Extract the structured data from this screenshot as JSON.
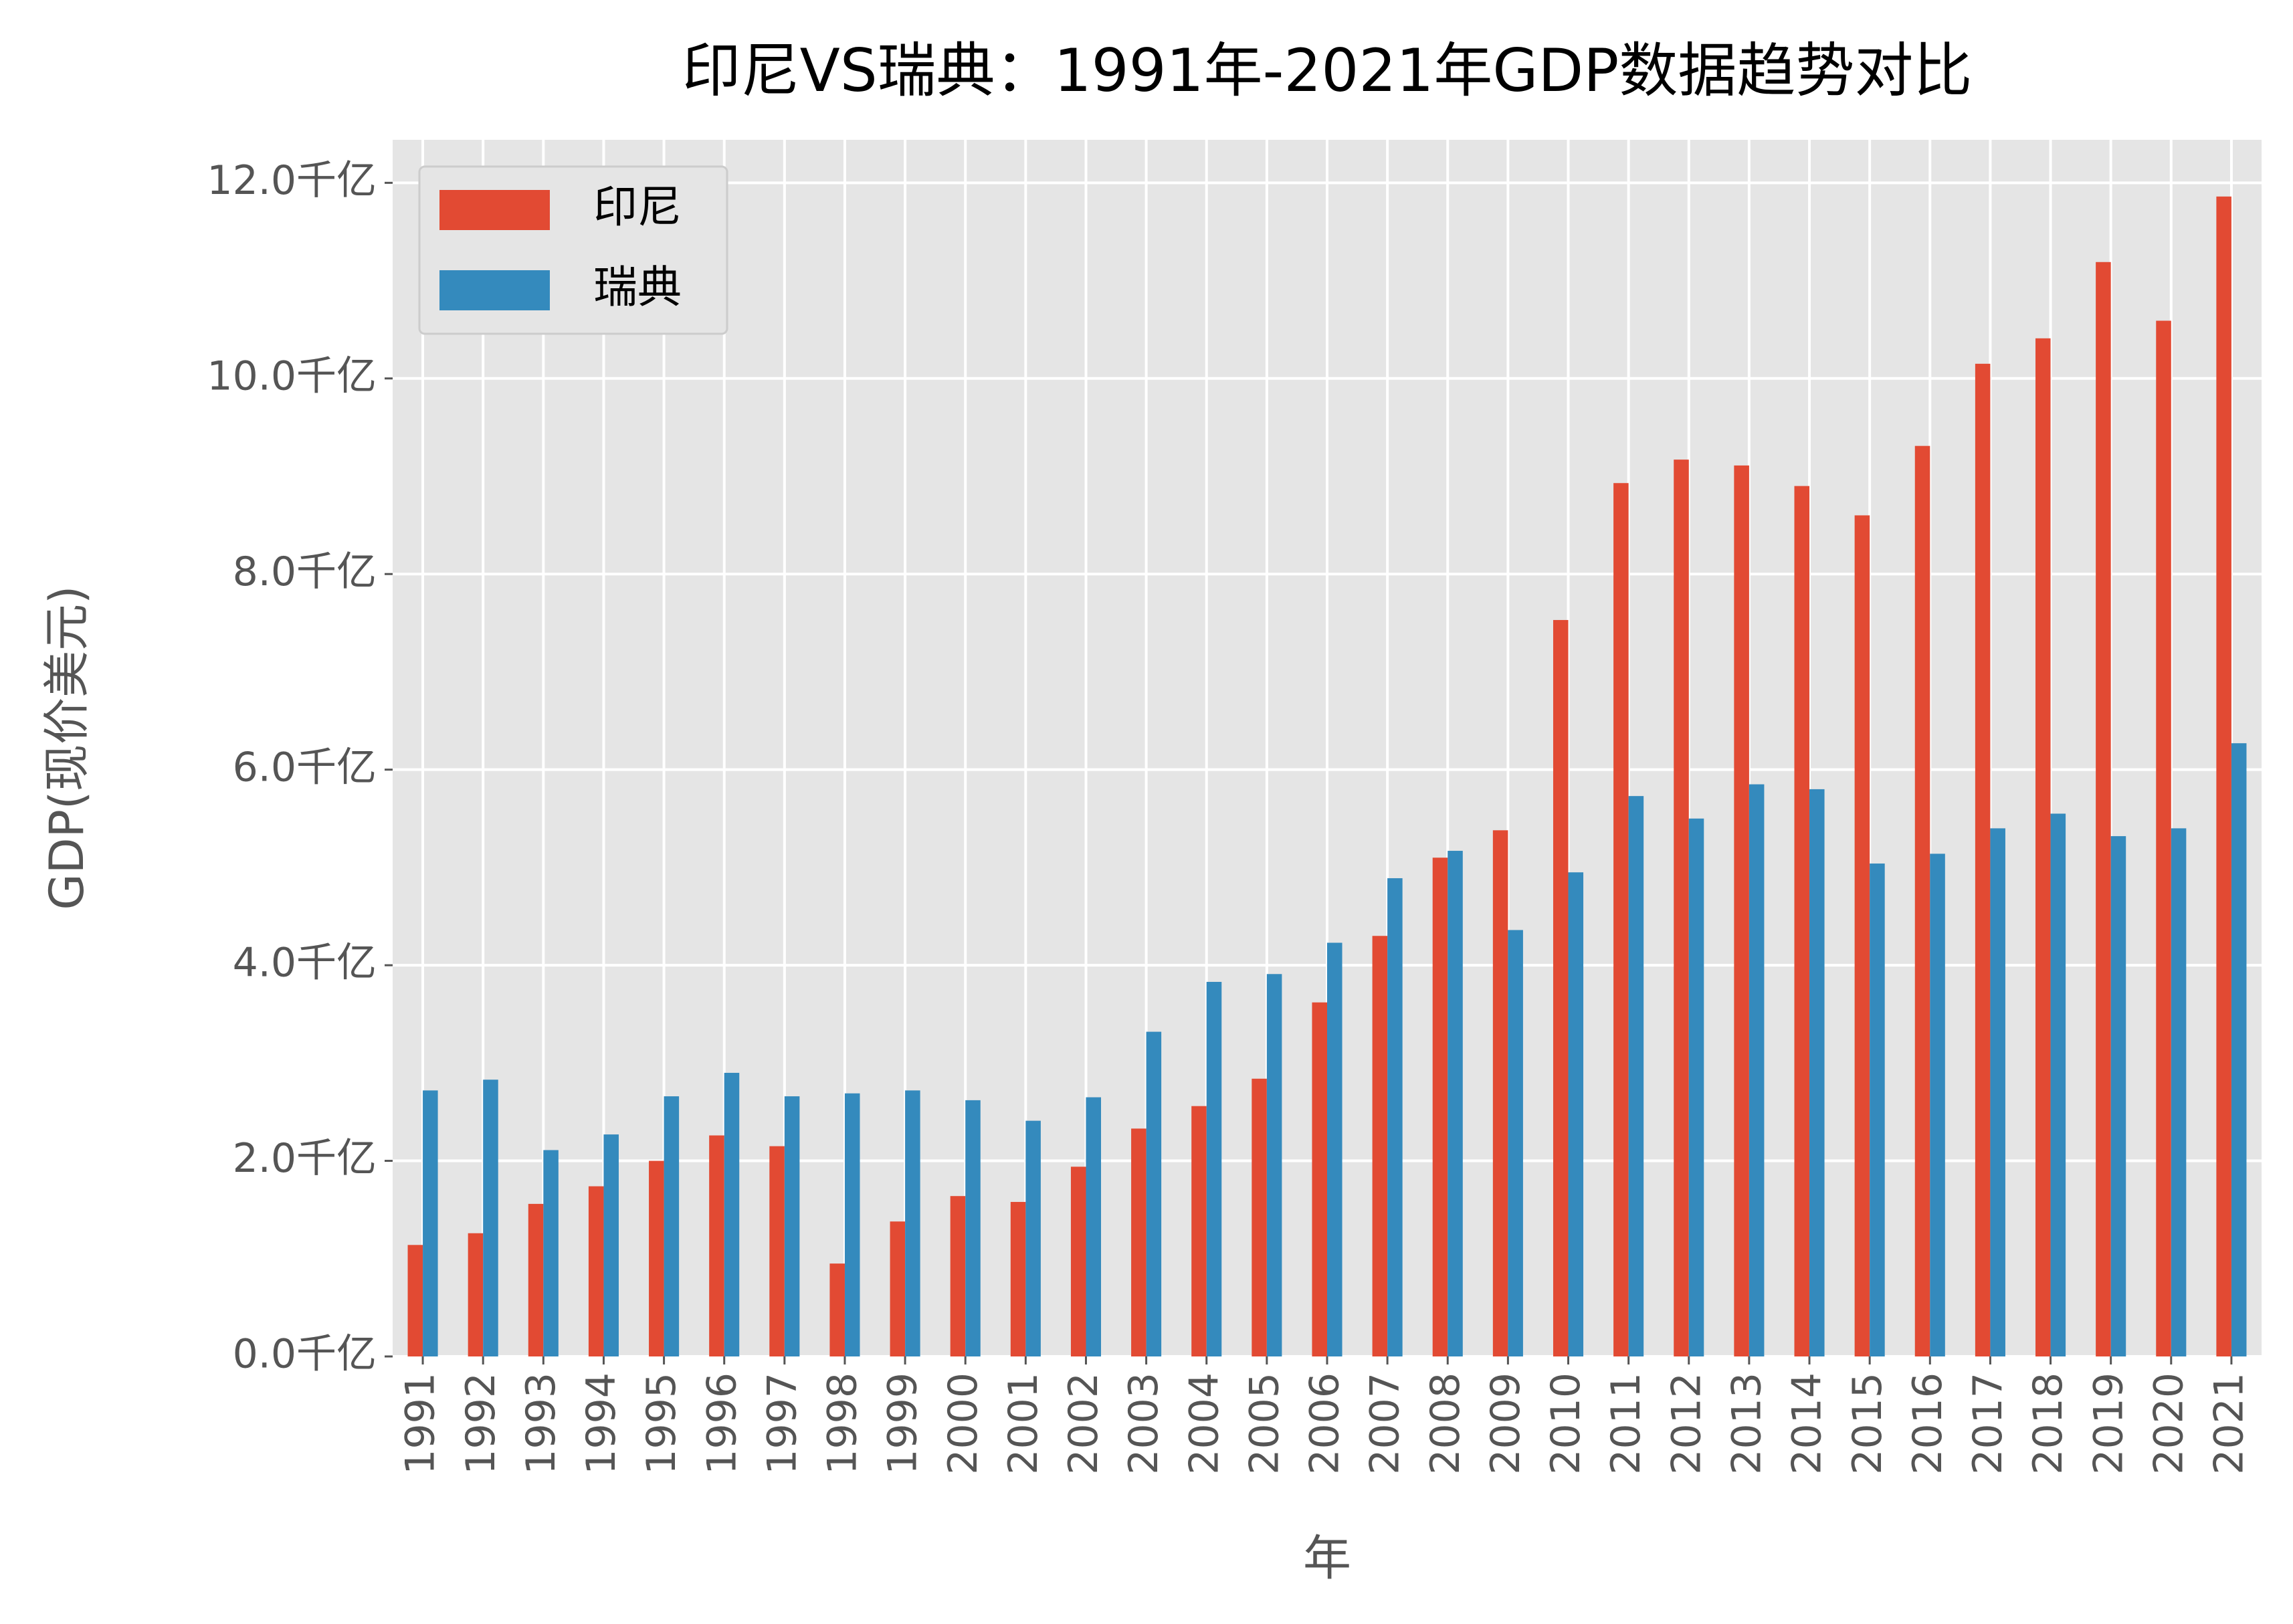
{
  "chart_data": {
    "type": "bar",
    "title": "印尼VS瑞典：1991年-2021年GDP数据趋势对比",
    "x_label": "年",
    "y_label": "GDP(现价美元)",
    "categories": [
      "1991",
      "1992",
      "1993",
      "1994",
      "1995",
      "1996",
      "1997",
      "1998",
      "1999",
      "2000",
      "2001",
      "2002",
      "2003",
      "2004",
      "2005",
      "2006",
      "2007",
      "2008",
      "2009",
      "2010",
      "2011",
      "2012",
      "2013",
      "2014",
      "2015",
      "2016",
      "2017",
      "2018",
      "2019",
      "2020",
      "2021"
    ],
    "series": [
      {
        "name": "印尼",
        "color": "#E24A33",
        "values": [
          1.14,
          1.26,
          1.56,
          1.74,
          2.0,
          2.26,
          2.15,
          0.95,
          1.38,
          1.64,
          1.58,
          1.94,
          2.33,
          2.56,
          2.84,
          3.62,
          4.3,
          5.1,
          5.38,
          7.53,
          8.93,
          9.17,
          9.11,
          8.9,
          8.6,
          9.31,
          10.15,
          10.41,
          11.19,
          10.59,
          11.86
        ]
      },
      {
        "name": "瑞典",
        "color": "#348ABD",
        "values": [
          2.72,
          2.83,
          2.11,
          2.27,
          2.66,
          2.9,
          2.66,
          2.69,
          2.72,
          2.62,
          2.41,
          2.65,
          3.32,
          3.83,
          3.91,
          4.23,
          4.89,
          5.17,
          4.36,
          4.95,
          5.73,
          5.5,
          5.85,
          5.8,
          5.04,
          5.14,
          5.4,
          5.55,
          5.32,
          5.4,
          6.27
        ]
      }
    ],
    "ylim": [
      0,
      12.44
    ],
    "yticks": [
      {
        "value": 0,
        "label": "0.0千亿"
      },
      {
        "value": 2,
        "label": "2.0千亿"
      },
      {
        "value": 4,
        "label": "4.0千亿"
      },
      {
        "value": 6,
        "label": "6.0千亿"
      },
      {
        "value": 8,
        "label": "8.0千亿"
      },
      {
        "value": 10,
        "label": "10.0千亿"
      },
      {
        "value": 12,
        "label": "12.0千亿"
      }
    ],
    "grid": true,
    "legend": "upper left"
  }
}
